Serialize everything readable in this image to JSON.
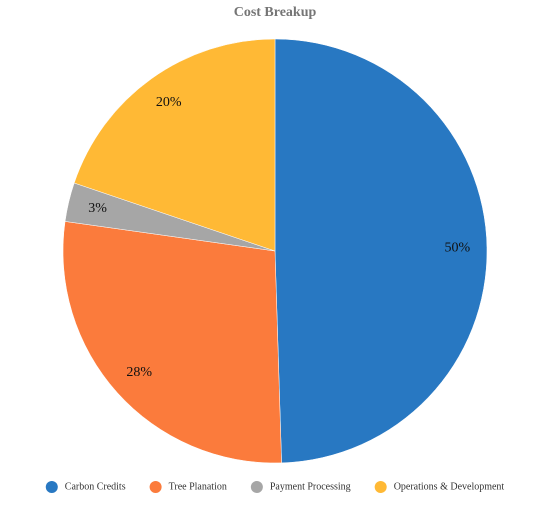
{
  "chart_data": {
    "type": "pie",
    "title": "Cost Breakup",
    "categories": [
      "Carbon Credits",
      "Tree Planation",
      "Payment Processing",
      "Operations & Development"
    ],
    "values": [
      50,
      28,
      3,
      20
    ],
    "value_labels": [
      "50%",
      "28%",
      "3%",
      "20%"
    ],
    "colors": [
      "#2878c2",
      "#fb7b3c",
      "#a6a6a6",
      "#ffb935"
    ],
    "legend": "bottom"
  }
}
